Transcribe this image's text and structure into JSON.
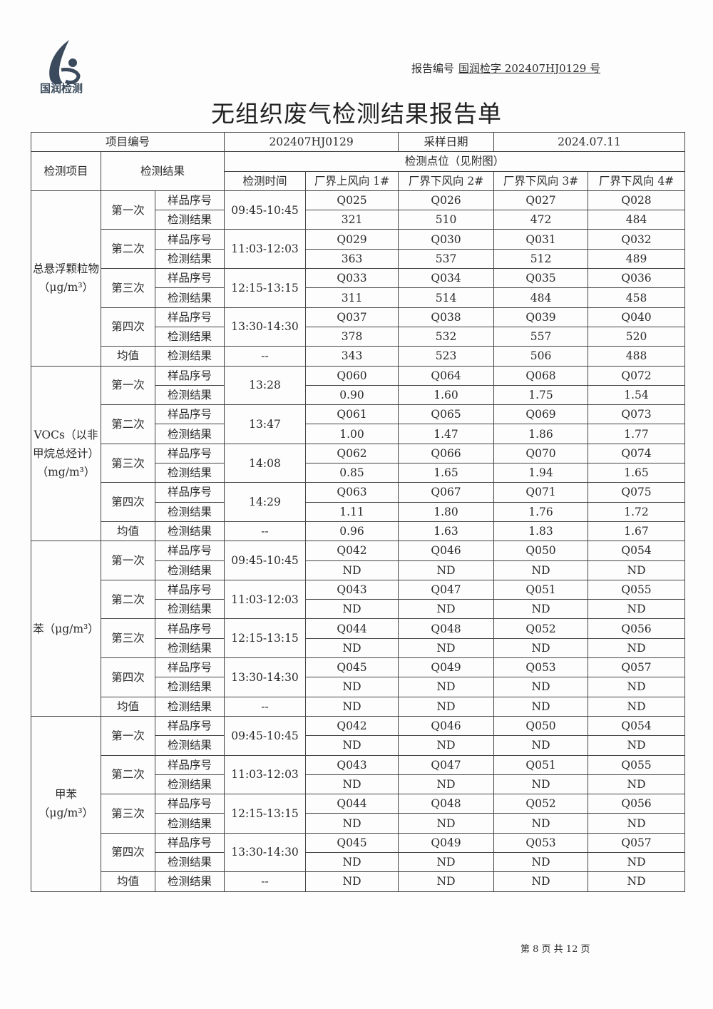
{
  "header": {
    "logo_text": "国润检测",
    "report_no_label": "报告编号",
    "report_no_value": "国润检字 202407HJ0129 号",
    "title": "无组织废气检测结果报告单"
  },
  "info": {
    "project_no_label": "项目编号",
    "project_no": "202407HJ0129",
    "sample_date_label": "采样日期",
    "sample_date": "2024.07.11"
  },
  "columns": {
    "item": "检测项目",
    "result": "检测结果",
    "points": "检测点位（见附图）",
    "time": "检测时间",
    "sites": [
      "厂界上风向 1#",
      "厂界下风向 2#",
      "厂界下风向 3#",
      "厂界下风向 4#"
    ]
  },
  "labels": {
    "sample_no": "样品序号",
    "result": "检测结果",
    "average": "均值"
  },
  "groups": [
    {
      "item": "总悬浮颗粒物（μg/m³）",
      "rounds": [
        {
          "name": "第一次",
          "time": "09:45-10:45",
          "samples": [
            "Q025",
            "Q026",
            "Q027",
            "Q028"
          ],
          "results": [
            "321",
            "510",
            "472",
            "484"
          ]
        },
        {
          "name": "第二次",
          "time": "11:03-12:03",
          "samples": [
            "Q029",
            "Q030",
            "Q031",
            "Q032"
          ],
          "results": [
            "363",
            "537",
            "512",
            "489"
          ]
        },
        {
          "name": "第三次",
          "time": "12:15-13:15",
          "samples": [
            "Q033",
            "Q034",
            "Q035",
            "Q036"
          ],
          "results": [
            "311",
            "514",
            "484",
            "458"
          ]
        },
        {
          "name": "第四次",
          "time": "13:30-14:30",
          "samples": [
            "Q037",
            "Q038",
            "Q039",
            "Q040"
          ],
          "results": [
            "378",
            "532",
            "557",
            "520"
          ]
        }
      ],
      "average": {
        "time": "--",
        "results": [
          "343",
          "523",
          "506",
          "488"
        ]
      }
    },
    {
      "item": "VOCs（以非甲烷总烃计）（mg/m³）",
      "rounds": [
        {
          "name": "第一次",
          "time": "13:28",
          "samples": [
            "Q060",
            "Q064",
            "Q068",
            "Q072"
          ],
          "results": [
            "0.90",
            "1.60",
            "1.75",
            "1.54"
          ]
        },
        {
          "name": "第二次",
          "time": "13:47",
          "samples": [
            "Q061",
            "Q065",
            "Q069",
            "Q073"
          ],
          "results": [
            "1.00",
            "1.47",
            "1.86",
            "1.77"
          ]
        },
        {
          "name": "第三次",
          "time": "14:08",
          "samples": [
            "Q062",
            "Q066",
            "Q070",
            "Q074"
          ],
          "results": [
            "0.85",
            "1.65",
            "1.94",
            "1.65"
          ]
        },
        {
          "name": "第四次",
          "time": "14:29",
          "samples": [
            "Q063",
            "Q067",
            "Q071",
            "Q075"
          ],
          "results": [
            "1.11",
            "1.80",
            "1.76",
            "1.72"
          ]
        }
      ],
      "average": {
        "time": "--",
        "results": [
          "0.96",
          "1.63",
          "1.83",
          "1.67"
        ]
      }
    },
    {
      "item": "苯（μg/m³）",
      "rounds": [
        {
          "name": "第一次",
          "time": "09:45-10:45",
          "samples": [
            "Q042",
            "Q046",
            "Q050",
            "Q054"
          ],
          "results": [
            "ND",
            "ND",
            "ND",
            "ND"
          ]
        },
        {
          "name": "第二次",
          "time": "11:03-12:03",
          "samples": [
            "Q043",
            "Q047",
            "Q051",
            "Q055"
          ],
          "results": [
            "ND",
            "ND",
            "ND",
            "ND"
          ]
        },
        {
          "name": "第三次",
          "time": "12:15-13:15",
          "samples": [
            "Q044",
            "Q048",
            "Q052",
            "Q056"
          ],
          "results": [
            "ND",
            "ND",
            "ND",
            "ND"
          ]
        },
        {
          "name": "第四次",
          "time": "13:30-14:30",
          "samples": [
            "Q045",
            "Q049",
            "Q053",
            "Q057"
          ],
          "results": [
            "ND",
            "ND",
            "ND",
            "ND"
          ]
        }
      ],
      "average": {
        "time": "--",
        "results": [
          "ND",
          "ND",
          "ND",
          "ND"
        ]
      }
    },
    {
      "item": "甲苯（μg/m³）",
      "rounds": [
        {
          "name": "第一次",
          "time": "09:45-10:45",
          "samples": [
            "Q042",
            "Q046",
            "Q050",
            "Q054"
          ],
          "results": [
            "ND",
            "ND",
            "ND",
            "ND"
          ]
        },
        {
          "name": "第二次",
          "time": "11:03-12:03",
          "samples": [
            "Q043",
            "Q047",
            "Q051",
            "Q055"
          ],
          "results": [
            "ND",
            "ND",
            "ND",
            "ND"
          ]
        },
        {
          "name": "第三次",
          "time": "12:15-13:15",
          "samples": [
            "Q044",
            "Q048",
            "Q052",
            "Q056"
          ],
          "results": [
            "ND",
            "ND",
            "ND",
            "ND"
          ]
        },
        {
          "name": "第四次",
          "time": "13:30-14:30",
          "samples": [
            "Q045",
            "Q049",
            "Q053",
            "Q057"
          ],
          "results": [
            "ND",
            "ND",
            "ND",
            "ND"
          ]
        }
      ],
      "average": {
        "time": "--",
        "results": [
          "ND",
          "ND",
          "ND",
          "ND"
        ]
      }
    }
  ],
  "footer": {
    "page": "第 8 页 共 12 页"
  }
}
